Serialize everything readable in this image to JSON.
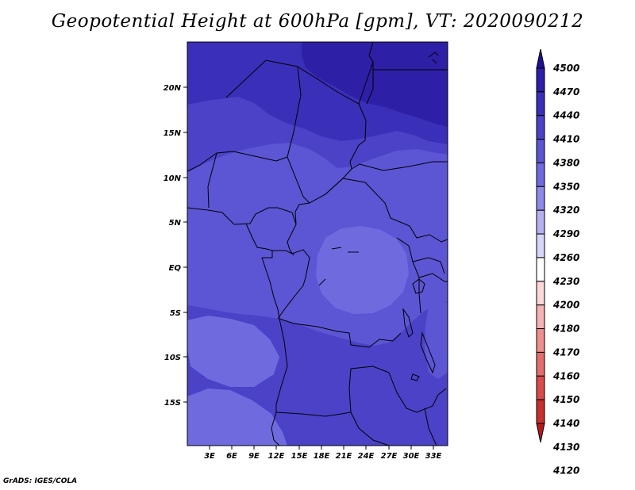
{
  "title": "Geopotential Height at 600hPa [gpm], VT: 2020090212",
  "credit": "GrADS: IGES/COLA",
  "map": {
    "lat_labels": [
      "20N",
      "15N",
      "10N",
      "5N",
      "EQ",
      "5S",
      "10S",
      "15S"
    ],
    "lon_labels": [
      "3E",
      "6E",
      "9E",
      "12E",
      "15E",
      "18E",
      "21E",
      "24E",
      "27E",
      "30E",
      "33E"
    ]
  },
  "colorbar": {
    "levels": [
      "4500",
      "4470",
      "4440",
      "4410",
      "4380",
      "4350",
      "4320",
      "4290",
      "4260",
      "4230",
      "4200",
      "4180",
      "4170",
      "4160",
      "4150",
      "4140",
      "4130",
      "4120"
    ],
    "colors": [
      "#1e0f96",
      "#2d1fa6",
      "#3a2fb8",
      "#4b42c8",
      "#5c55d4",
      "#6f6bdf",
      "#8e8ae8",
      "#b3b1f0",
      "#d6d5f8",
      "#ffffff",
      "#fbd7d7",
      "#f6b3b3",
      "#ee8f8f",
      "#e46d6d",
      "#d84c4c",
      "#c83030",
      "#b51a1a"
    ]
  },
  "fields": {
    "colors": {
      "c4470": "#2d1fa6",
      "c4440": "#3a2fb8",
      "c4410": "#4b42c8",
      "c4380": "#5c55d4",
      "c4350": "#6f6bdf"
    }
  }
}
